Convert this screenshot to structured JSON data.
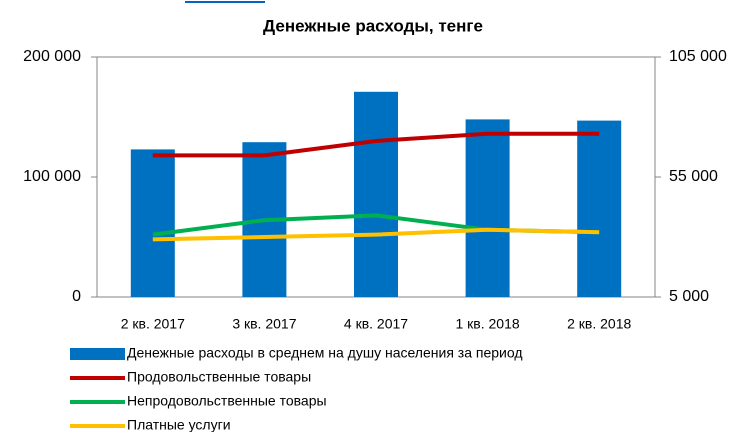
{
  "chart_data": {
    "type": "combo",
    "title": "Денежные расходы, тенге",
    "categories": [
      "2 кв. 2017",
      "3 кв. 2017",
      "4 кв. 2017",
      "1 кв. 2018",
      "2 кв. 2018"
    ],
    "series": [
      {
        "name": "Денежные расходы в среднем на душу населения за период",
        "type": "bar",
        "color": "#0070c0",
        "axis": "y",
        "values": [
          123000,
          129000,
          171000,
          148000,
          147000
        ]
      },
      {
        "name": "Продовольственные товары",
        "type": "line",
        "color": "#c00000",
        "axis": "y2",
        "values": [
          64000,
          64000,
          70000,
          73000,
          73000
        ]
      },
      {
        "name": "Непродовольственные товары",
        "type": "line",
        "color": "#00b050",
        "axis": "y2",
        "values": [
          31000,
          37000,
          39000,
          33000,
          32000
        ]
      },
      {
        "name": "Платные услуги",
        "type": "line",
        "color": "#ffc000",
        "axis": "y2",
        "values": [
          29000,
          30000,
          31000,
          33000,
          32000
        ]
      }
    ],
    "ylim": [
      0,
      200000
    ],
    "yticks": [
      0,
      {
        "value": 100000,
        "label": "100 000"
      },
      {
        "value": 200000,
        "label": "200 000"
      }
    ],
    "y2lim": [
      5000,
      105000
    ],
    "y2ticks": [
      {
        "value": 5000,
        "label": "5 000"
      },
      {
        "value": 55000,
        "label": "55 000"
      },
      {
        "value": 105000,
        "label": "105 000"
      }
    ]
  }
}
